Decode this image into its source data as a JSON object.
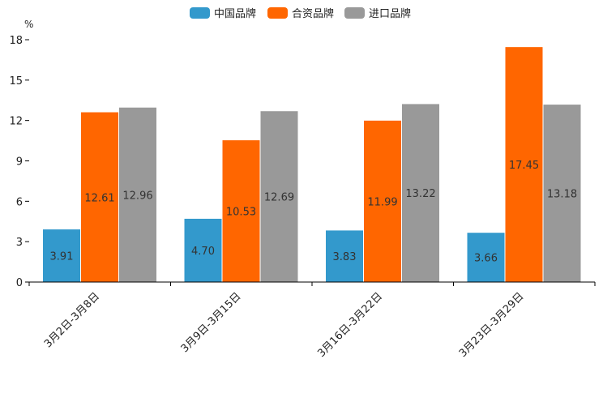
{
  "chart_data": {
    "type": "bar",
    "unit": "%",
    "categories": [
      "3月2日-3月8日",
      "3月9日-3月15日",
      "3月16日-3月22日",
      "3月23日-3月29日"
    ],
    "series": [
      {
        "name": "中国品牌",
        "color": "#3399cc",
        "values": [
          3.91,
          4.7,
          3.83,
          3.66
        ],
        "labels": [
          "3.91",
          "4.70",
          "3.83",
          "3.66"
        ]
      },
      {
        "name": "合资品牌",
        "color": "#ff6600",
        "values": [
          12.61,
          10.53,
          11.99,
          17.45
        ],
        "labels": [
          "12.61",
          "10.53",
          "11.99",
          "17.45"
        ]
      },
      {
        "name": "进口品牌",
        "color": "#999999",
        "values": [
          12.96,
          12.69,
          13.22,
          13.18
        ],
        "labels": [
          "12.96",
          "12.69",
          "13.22",
          "13.18"
        ]
      }
    ],
    "ylim": [
      0,
      18
    ],
    "yticks": [
      "0",
      "3",
      "6",
      "9",
      "12",
      "15",
      "18"
    ],
    "legend_position": "top-center"
  }
}
